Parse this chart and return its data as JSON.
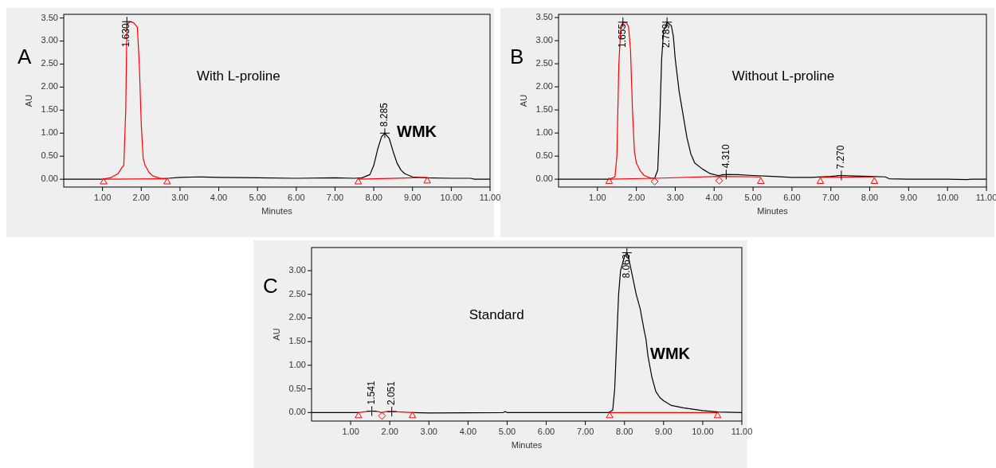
{
  "chart_data": [
    {
      "type": "line",
      "title": "With L-proline",
      "xlabel": "Minutes",
      "ylabel": "AU",
      "xlim": [
        0,
        11
      ],
      "ylim": [
        -0.17,
        3.58
      ],
      "xticks": [
        {
          "value": 1,
          "label": "1.00"
        },
        {
          "value": 2,
          "label": "2.00"
        },
        {
          "value": 3,
          "label": "3.00"
        },
        {
          "value": 4,
          "label": "4.00"
        },
        {
          "value": 5,
          "label": "5.00"
        },
        {
          "value": 6,
          "label": "6.00"
        },
        {
          "value": 7,
          "label": "7.00"
        },
        {
          "value": 8,
          "label": "8.00"
        },
        {
          "value": 9,
          "label": "9.00"
        },
        {
          "value": 10,
          "label": "10.00"
        },
        {
          "value": 11,
          "label": "11.00"
        }
      ],
      "yticks": [
        {
          "value": 0,
          "label": "0.00"
        },
        {
          "value": 0.5,
          "label": "0.50"
        },
        {
          "value": 1,
          "label": "1.00"
        },
        {
          "value": 1.5,
          "label": "1.50"
        },
        {
          "value": 2,
          "label": "2.00"
        },
        {
          "value": 2.5,
          "label": "2.50"
        },
        {
          "value": 3,
          "label": "3.00"
        },
        {
          "value": 3.5,
          "label": "3.50"
        }
      ],
      "series": [
        {
          "type": "line",
          "color": "#000000",
          "x": [
            0,
            0.5,
            1.0,
            1.01,
            2.7,
            3.0,
            3.5,
            4.0,
            5.0,
            6.0,
            7.0,
            7.5,
            7.7,
            7.9,
            8.0,
            8.1,
            8.2,
            8.285,
            8.4,
            8.5,
            8.6,
            8.7,
            8.8,
            9.0,
            9.3,
            10.0,
            10.5,
            10.6,
            11.0
          ],
          "values": [
            0,
            0,
            0,
            null,
            0.02,
            0.04,
            0.05,
            0.04,
            0.03,
            0.02,
            0.03,
            0.02,
            0.03,
            0.1,
            0.3,
            0.65,
            0.92,
            1.0,
            0.88,
            0.6,
            0.35,
            0.2,
            0.12,
            0.05,
            0.03,
            0.02,
            0.02,
            0,
            0
          ]
        },
        {
          "type": "line",
          "color": "#ff0000",
          "x": [
            1.0,
            1.2,
            1.4,
            1.5,
            1.55,
            1.6,
            1.63,
            1.7,
            1.8,
            1.9,
            1.95,
            2.0,
            2.05,
            2.1,
            2.2,
            2.3,
            2.5,
            2.7
          ],
          "values": [
            0,
            0.03,
            0.12,
            0.25,
            0.3,
            1.5,
            3.35,
            3.42,
            3.4,
            3.3,
            2.5,
            1.2,
            0.45,
            0.3,
            0.15,
            0.07,
            0.02,
            0.02
          ]
        },
        {
          "type": "line",
          "color": "#ff0000",
          "x": [
            1.03,
            2.67,
            2.68,
            7.6,
            9.38
          ],
          "values": [
            0,
            0.01,
            null,
            0,
            0.04
          ]
        },
        {
          "type": "scatter",
          "marker": "triangle",
          "color": "#ff0000",
          "x": [
            1.03,
            2.67,
            7.6,
            9.38
          ],
          "values": [
            -0.06,
            -0.06,
            -0.06,
            -0.04
          ]
        },
        {
          "type": "scatter",
          "marker": "cross",
          "color": "#000000",
          "x": [
            1.63,
            8.285
          ],
          "values": [
            3.42,
            1.0
          ]
        }
      ],
      "annotations": [
        "A",
        "WMK",
        {
          "text": "1.630",
          "x": 1.63,
          "y": 3.42
        },
        {
          "text": "8.285",
          "x": 8.285,
          "y": 1.0
        }
      ]
    },
    {
      "type": "line",
      "title": "Without L-proline",
      "xlabel": "Minutes",
      "ylabel": "AU",
      "xlim": [
        0,
        11
      ],
      "ylim": [
        -0.17,
        3.57
      ],
      "xticks": [
        {
          "value": 1,
          "label": "1.00"
        },
        {
          "value": 2,
          "label": "2.00"
        },
        {
          "value": 3,
          "label": "3.00"
        },
        {
          "value": 4,
          "label": "4.00"
        },
        {
          "value": 5,
          "label": "5.00"
        },
        {
          "value": 6,
          "label": "6.00"
        },
        {
          "value": 7,
          "label": "7.00"
        },
        {
          "value": 8,
          "label": "8.00"
        },
        {
          "value": 9,
          "label": "9.00"
        },
        {
          "value": 10,
          "label": "10.00"
        },
        {
          "value": 11,
          "label": "11.00"
        }
      ],
      "yticks": [
        {
          "value": 0,
          "label": "0.00"
        },
        {
          "value": 0.5,
          "label": "0.50"
        },
        {
          "value": 1,
          "label": "1.00"
        },
        {
          "value": 1.5,
          "label": "1.50"
        },
        {
          "value": 2,
          "label": "2.00"
        },
        {
          "value": 2.5,
          "label": "2.50"
        },
        {
          "value": 3,
          "label": "3.00"
        },
        {
          "value": 3.5,
          "label": "3.50"
        }
      ],
      "series": [
        {
          "type": "line",
          "color": "#000000",
          "x": [
            0,
            0.7,
            1.3,
            1.31,
            2.47,
            2.55,
            2.6,
            2.65,
            2.7,
            2.789,
            2.9,
            2.95,
            3.0,
            3.1,
            3.2,
            3.3,
            3.4,
            3.5,
            3.7,
            3.9,
            4.1,
            4.31,
            4.6,
            5.0,
            5.5,
            6.0,
            6.5,
            7.0,
            7.27,
            7.6,
            8.0,
            8.4,
            8.5,
            9.0,
            10.0,
            10.5,
            10.6,
            11.0
          ],
          "values": [
            0,
            0,
            0,
            null,
            0.02,
            0.2,
            1.2,
            2.6,
            3.2,
            3.4,
            3.32,
            3.1,
            2.6,
            1.9,
            1.4,
            0.9,
            0.55,
            0.35,
            0.22,
            0.12,
            0.08,
            0.1,
            0.1,
            0.08,
            0.06,
            0.04,
            0.04,
            0.06,
            0.08,
            0.07,
            0.06,
            0.05,
            0.01,
            0,
            0,
            -0.01,
            0,
            0
          ]
        },
        {
          "type": "line",
          "color": "#ff0000",
          "x": [
            1.3,
            1.45,
            1.5,
            1.55,
            1.6,
            1.655,
            1.75,
            1.8,
            1.85,
            1.9,
            1.95,
            2.0,
            2.1,
            2.2,
            2.35,
            2.47
          ],
          "values": [
            0,
            0.05,
            0.5,
            2.5,
            3.3,
            3.4,
            3.38,
            3.3,
            2.8,
            1.5,
            0.6,
            0.35,
            0.18,
            0.08,
            0.03,
            0.02
          ]
        },
        {
          "type": "line",
          "color": "#ff0000",
          "x": [
            1.3,
            2.47,
            4.13,
            5.2,
            5.21,
            6.73,
            8.12
          ],
          "values": [
            0,
            0.02,
            0.06,
            0.05,
            null,
            0.04,
            0.05
          ]
        },
        {
          "type": "scatter",
          "marker": "triangle",
          "color": "#ff0000",
          "x": [
            1.3,
            5.2,
            6.73,
            8.12
          ],
          "values": [
            -0.05,
            -0.05,
            -0.05,
            -0.05
          ]
        },
        {
          "type": "scatter",
          "marker": "diamond",
          "color": "#ff0000",
          "x": [
            2.47,
            4.13
          ],
          "values": [
            -0.05,
            -0.03
          ]
        },
        {
          "type": "scatter",
          "marker": "cross",
          "color": "#000000",
          "x": [
            1.655,
            2.789,
            4.31,
            7.27
          ],
          "values": [
            3.4,
            3.4,
            0.1,
            0.08
          ]
        }
      ],
      "annotations": [
        "B",
        {
          "text": "1.655",
          "x": 1.655,
          "y": 3.4
        },
        {
          "text": "2.789",
          "x": 2.789,
          "y": 3.4
        },
        {
          "text": "4.310",
          "x": 4.31,
          "y": 0.1
        },
        {
          "text": "7.270",
          "x": 7.27,
          "y": 0.08
        }
      ]
    },
    {
      "type": "line",
      "title": "Standard",
      "xlabel": "Minutes",
      "ylabel": "AU",
      "xlim": [
        0,
        11
      ],
      "ylim": [
        -0.18,
        3.49
      ],
      "xticks": [
        {
          "value": 1,
          "label": "1.00"
        },
        {
          "value": 2,
          "label": "2.00"
        },
        {
          "value": 3,
          "label": "3.00"
        },
        {
          "value": 4,
          "label": "4.00"
        },
        {
          "value": 5,
          "label": "5.00"
        },
        {
          "value": 6,
          "label": "6.00"
        },
        {
          "value": 7,
          "label": "7.00"
        },
        {
          "value": 8,
          "label": "8.00"
        },
        {
          "value": 9,
          "label": "9.00"
        },
        {
          "value": 10,
          "label": "10.00"
        },
        {
          "value": 11,
          "label": "11.00"
        }
      ],
      "yticks": [
        {
          "value": 0,
          "label": "0.00"
        },
        {
          "value": 0.5,
          "label": "0.50"
        },
        {
          "value": 1,
          "label": "1.00"
        },
        {
          "value": 1.5,
          "label": "1.50"
        },
        {
          "value": 2,
          "label": "2.00"
        },
        {
          "value": 2.5,
          "label": "2.50"
        },
        {
          "value": 3,
          "label": "3.00"
        }
      ],
      "series": [
        {
          "type": "line",
          "color": "#000000",
          "x": [
            0,
            0.6,
            1.2,
            1.21,
            2.6,
            3.0,
            4.9,
            4.95,
            5.0,
            7.6,
            7.7,
            7.75,
            7.8,
            7.85,
            7.9,
            8.0,
            8.062,
            8.1,
            8.2,
            8.3,
            8.4,
            8.5,
            8.55,
            8.6,
            8.7,
            8.8,
            8.9,
            9.0,
            9.2,
            9.5,
            10.0,
            10.4,
            11.0
          ],
          "values": [
            0,
            0,
            0,
            null,
            0,
            -0.01,
            0,
            0.02,
            0,
            0,
            0.05,
            0.5,
            1.5,
            2.5,
            3.0,
            3.3,
            3.38,
            3.3,
            2.9,
            2.5,
            2.2,
            1.75,
            1.55,
            1.2,
            0.75,
            0.45,
            0.32,
            0.25,
            0.15,
            0.1,
            0.04,
            0.01,
            0
          ]
        },
        {
          "type": "line",
          "color": "#ff0000",
          "x": [
            1.2,
            1.4,
            1.541,
            1.7,
            1.8,
            1.9,
            2.051,
            2.3,
            2.6
          ],
          "values": [
            0,
            0.02,
            0.03,
            0.02,
            0,
            0.02,
            0.02,
            0.01,
            0
          ]
        },
        {
          "type": "line",
          "color": "#ff0000",
          "x": [
            7.62,
            10.38
          ],
          "values": [
            0,
            0
          ]
        },
        {
          "type": "scatter",
          "marker": "triangle",
          "color": "#ff0000",
          "x": [
            1.2,
            2.58,
            7.62,
            10.38
          ],
          "values": [
            -0.07,
            -0.07,
            -0.07,
            -0.07
          ]
        },
        {
          "type": "scatter",
          "marker": "diamond",
          "color": "#ff0000",
          "x": [
            1.8
          ],
          "values": [
            -0.07
          ]
        },
        {
          "type": "scatter",
          "marker": "cross",
          "color": "#000000",
          "x": [
            1.541,
            2.051,
            8.062
          ],
          "values": [
            0.03,
            0.02,
            3.38
          ]
        }
      ],
      "annotations": [
        "C",
        "WMK",
        {
          "text": "1.541",
          "x": 1.541,
          "y": 0.03
        },
        {
          "text": "2.051",
          "x": 2.051,
          "y": 0.02
        },
        {
          "text": "8.062",
          "x": 8.062,
          "y": 3.38
        }
      ]
    }
  ]
}
